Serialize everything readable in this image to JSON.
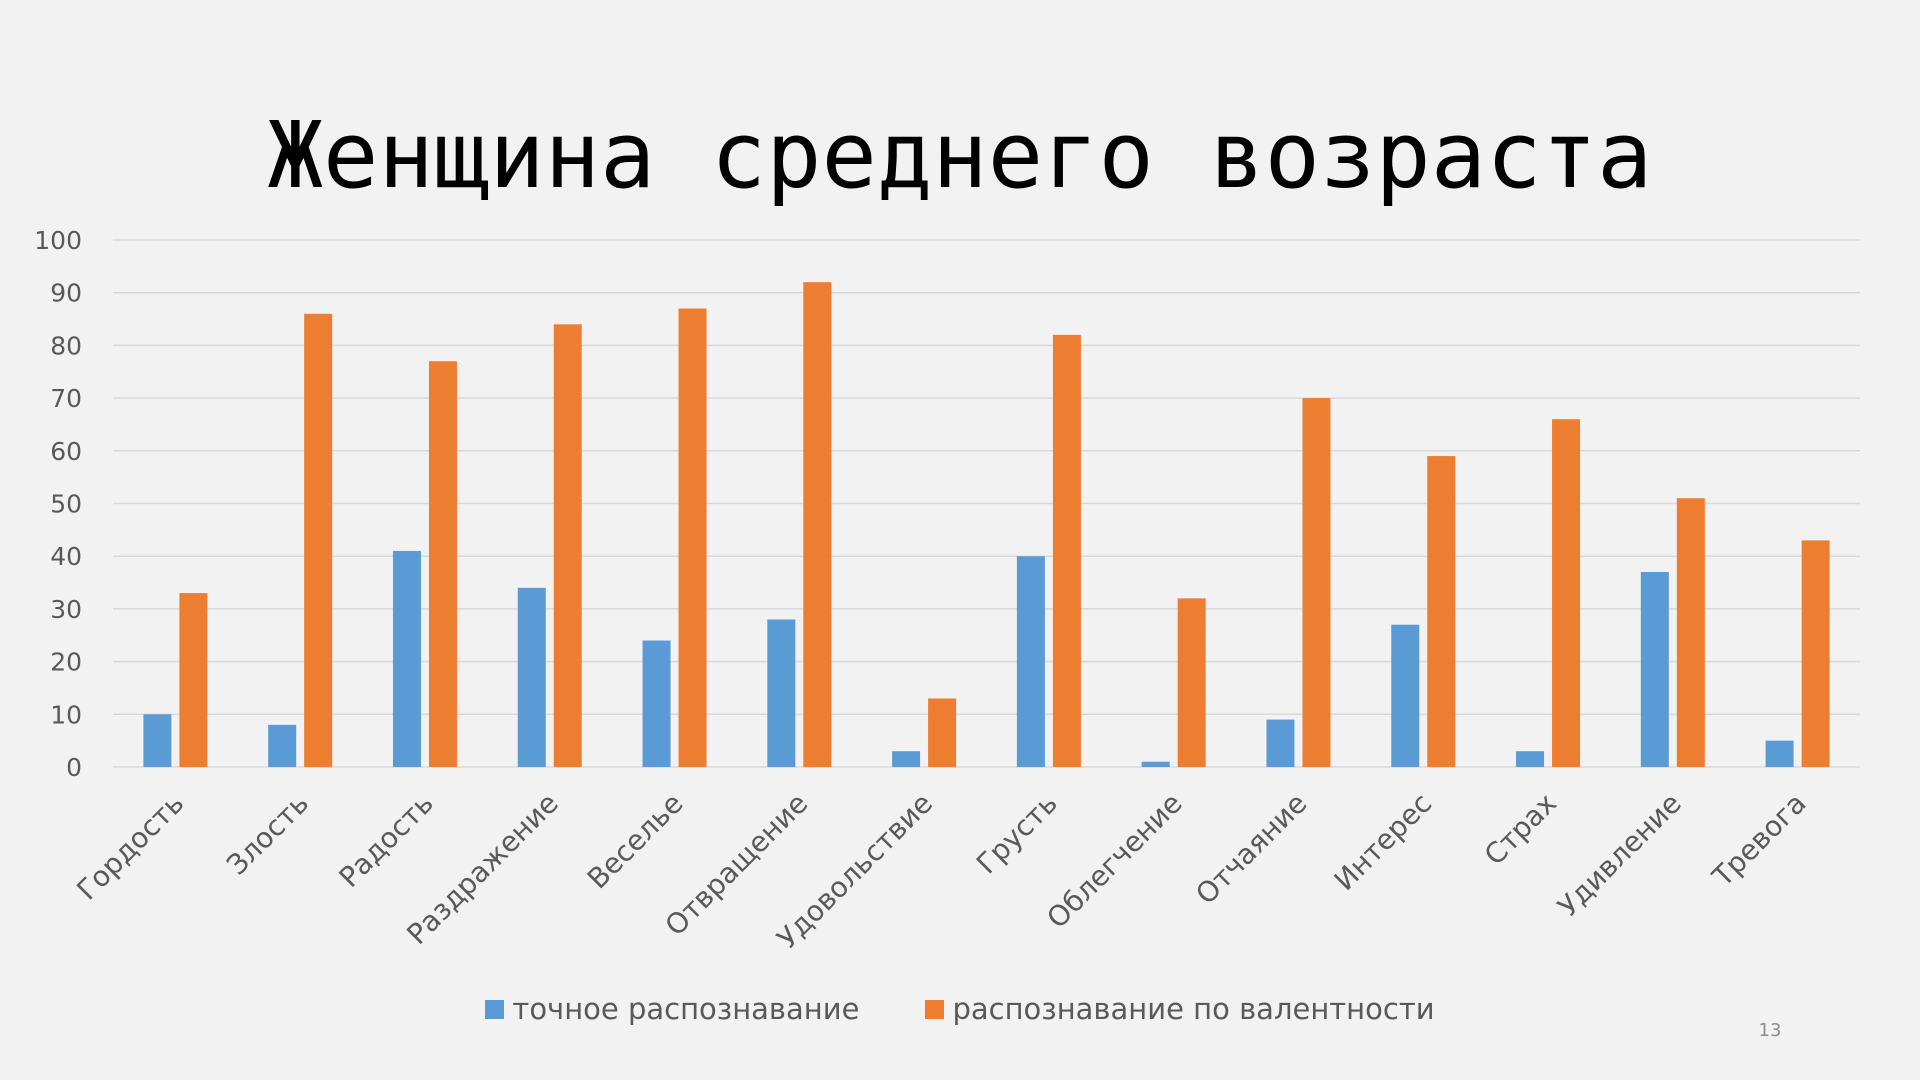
{
  "slide": {
    "title": "Женщина среднего возраста",
    "page_number": "13"
  },
  "colors": {
    "background": "#F2F2F2",
    "series1": "#5B9BD5",
    "series2": "#ED7D31",
    "grid": "#D9D9D9",
    "tick_text": "#595959"
  },
  "chart_data": {
    "type": "bar",
    "title": "Женщина среднего возраста",
    "xlabel": "",
    "ylabel": "",
    "ylim": [
      0,
      100
    ],
    "y_ticks": [
      "0",
      "10",
      "20",
      "30",
      "40",
      "50",
      "60",
      "70",
      "80",
      "90",
      "100"
    ],
    "y_tick_values": [
      0,
      10,
      20,
      30,
      40,
      50,
      60,
      70,
      80,
      90,
      100
    ],
    "grid": true,
    "legend_position": "bottom",
    "categories": [
      "Гордость",
      "Злость",
      "Радость",
      "Раздражение",
      "Веселье",
      "Отвращение",
      "Удовольствие",
      "Грусть",
      "Облегчение",
      "Отчаяние",
      "Интерес",
      "Страх",
      "Удивление",
      "Тревога"
    ],
    "series": [
      {
        "name": "точное распознавание",
        "color": "#5B9BD5",
        "values": [
          10,
          8,
          41,
          34,
          24,
          28,
          3,
          40,
          1,
          9,
          27,
          3,
          37,
          5
        ]
      },
      {
        "name": "распознавание по валентности",
        "color": "#ED7D31",
        "values": [
          33,
          86,
          77,
          84,
          87,
          92,
          13,
          82,
          32,
          70,
          59,
          66,
          51,
          43
        ]
      }
    ]
  }
}
